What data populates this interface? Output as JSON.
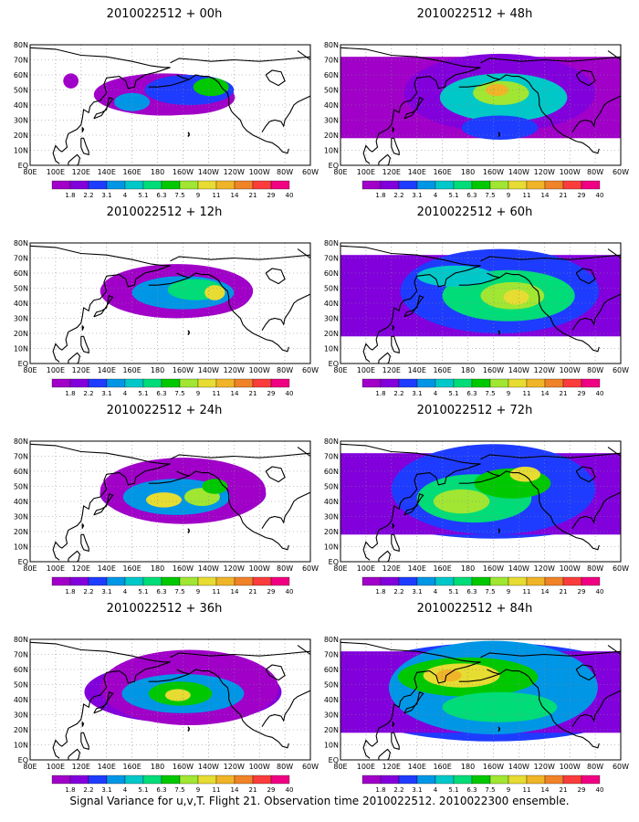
{
  "colorbar": {
    "labels": [
      "1.8",
      "2.2",
      "3.1",
      "4",
      "5.1",
      "6.3",
      "7.5",
      "9",
      "11",
      "14",
      "21",
      "29",
      "40"
    ],
    "colors": [
      "#a000c8",
      "#8200dc",
      "#1e3cff",
      "#0096e6",
      "#00c8c8",
      "#00dc78",
      "#00c800",
      "#a0e632",
      "#e6dc32",
      "#f0b428",
      "#f08228",
      "#fa3c3c",
      "#f00082"
    ]
  },
  "axes": {
    "lon_labels": [
      "80E",
      "100E",
      "120E",
      "140E",
      "160E",
      "180",
      "160W",
      "140W",
      "120W",
      "100W",
      "80W",
      "60W"
    ],
    "lat_labels": [
      "80N",
      "70N",
      "60N",
      "50N",
      "40N",
      "30N",
      "20N",
      "10N",
      "EQ"
    ]
  },
  "panels": [
    {
      "title": "2010022512 + 00h",
      "coverage": 1,
      "blobs": [
        {
          "lon": 185,
          "lat": 47,
          "rx": 55,
          "ry": 14,
          "level": 0
        },
        {
          "lon": 205,
          "lat": 50,
          "rx": 35,
          "ry": 10,
          "level": 2
        },
        {
          "lon": 222,
          "lat": 52,
          "rx": 14,
          "ry": 6,
          "level": 6
        },
        {
          "lon": 160,
          "lat": 42,
          "rx": 14,
          "ry": 6,
          "level": 3
        },
        {
          "lon": 112,
          "lat": 56,
          "rx": 6,
          "ry": 5,
          "level": 0
        }
      ]
    },
    {
      "title": "2010022512 + 12h",
      "coverage": 2,
      "blobs": [
        {
          "lon": 195,
          "lat": 48,
          "rx": 60,
          "ry": 18,
          "level": 0
        },
        {
          "lon": 200,
          "lat": 47,
          "rx": 40,
          "ry": 11,
          "level": 3
        },
        {
          "lon": 210,
          "lat": 49,
          "rx": 22,
          "ry": 7,
          "level": 5
        },
        {
          "lon": 225,
          "lat": 47,
          "rx": 8,
          "ry": 5,
          "level": 8
        }
      ]
    },
    {
      "title": "2010022512 + 24h",
      "coverage": 3,
      "blobs": [
        {
          "lon": 200,
          "lat": 47,
          "rx": 65,
          "ry": 22,
          "level": 0
        },
        {
          "lon": 195,
          "lat": 43,
          "rx": 42,
          "ry": 12,
          "level": 3
        },
        {
          "lon": 185,
          "lat": 41,
          "rx": 14,
          "ry": 5,
          "level": 8
        },
        {
          "lon": 215,
          "lat": 43,
          "rx": 14,
          "ry": 6,
          "level": 7
        },
        {
          "lon": 225,
          "lat": 50,
          "rx": 10,
          "ry": 5,
          "level": 6
        }
      ]
    },
    {
      "title": "2010022512 + 36h",
      "coverage": 4,
      "blobs": [
        {
          "lon": 205,
          "lat": 48,
          "rx": 70,
          "ry": 25,
          "level": 0
        },
        {
          "lon": 200,
          "lat": 44,
          "rx": 48,
          "ry": 13,
          "level": 3
        },
        {
          "lon": 198,
          "lat": 44,
          "rx": 25,
          "ry": 8,
          "level": 6
        },
        {
          "lon": 196,
          "lat": 43,
          "rx": 10,
          "ry": 4,
          "level": 8
        }
      ]
    },
    {
      "title": "2010022512 + 48h",
      "coverage": 5,
      "blobs": [
        {
          "lon": 205,
          "lat": 48,
          "rx": 75,
          "ry": 26,
          "level": 1
        },
        {
          "lon": 208,
          "lat": 45,
          "rx": 50,
          "ry": 16,
          "level": 4
        },
        {
          "lon": 206,
          "lat": 48,
          "rx": 22,
          "ry": 8,
          "level": 7
        },
        {
          "lon": 203,
          "lat": 50,
          "rx": 9,
          "ry": 4,
          "level": 9
        },
        {
          "lon": 205,
          "lat": 25,
          "rx": 30,
          "ry": 8,
          "level": 2
        }
      ]
    },
    {
      "title": "2010022512 + 60h",
      "coverage": 6,
      "blobs": [
        {
          "lon": 205,
          "lat": 48,
          "rx": 78,
          "ry": 28,
          "level": 2
        },
        {
          "lon": 212,
          "lat": 45,
          "rx": 52,
          "ry": 17,
          "level": 5
        },
        {
          "lon": 215,
          "lat": 45,
          "rx": 25,
          "ry": 9,
          "level": 7
        },
        {
          "lon": 218,
          "lat": 44,
          "rx": 10,
          "ry": 5,
          "level": 8
        },
        {
          "lon": 170,
          "lat": 58,
          "rx": 30,
          "ry": 7,
          "level": 4
        }
      ]
    },
    {
      "title": "2010022512 + 72h",
      "coverage": 7,
      "blobs": [
        {
          "lon": 200,
          "lat": 48,
          "rx": 80,
          "ry": 30,
          "level": 2
        },
        {
          "lon": 185,
          "lat": 42,
          "rx": 45,
          "ry": 16,
          "level": 5
        },
        {
          "lon": 175,
          "lat": 40,
          "rx": 22,
          "ry": 8,
          "level": 7
        },
        {
          "lon": 215,
          "lat": 52,
          "rx": 30,
          "ry": 10,
          "level": 6
        },
        {
          "lon": 225,
          "lat": 58,
          "rx": 12,
          "ry": 5,
          "level": 8
        }
      ]
    },
    {
      "title": "2010022512 + 84h",
      "coverage": 8,
      "blobs": [
        {
          "lon": 200,
          "lat": 48,
          "rx": 82,
          "ry": 31,
          "level": 3
        },
        {
          "lon": 180,
          "lat": 55,
          "rx": 55,
          "ry": 13,
          "level": 6
        },
        {
          "lon": 175,
          "lat": 56,
          "rx": 30,
          "ry": 8,
          "level": 8
        },
        {
          "lon": 165,
          "lat": 56,
          "rx": 10,
          "ry": 4,
          "level": 9
        },
        {
          "lon": 205,
          "lat": 35,
          "rx": 45,
          "ry": 10,
          "level": 5
        }
      ]
    }
  ],
  "caption": "Signal Variance for u,v,T. Flight 21. Observation time 2010022512. 2010022300 ensemble."
}
